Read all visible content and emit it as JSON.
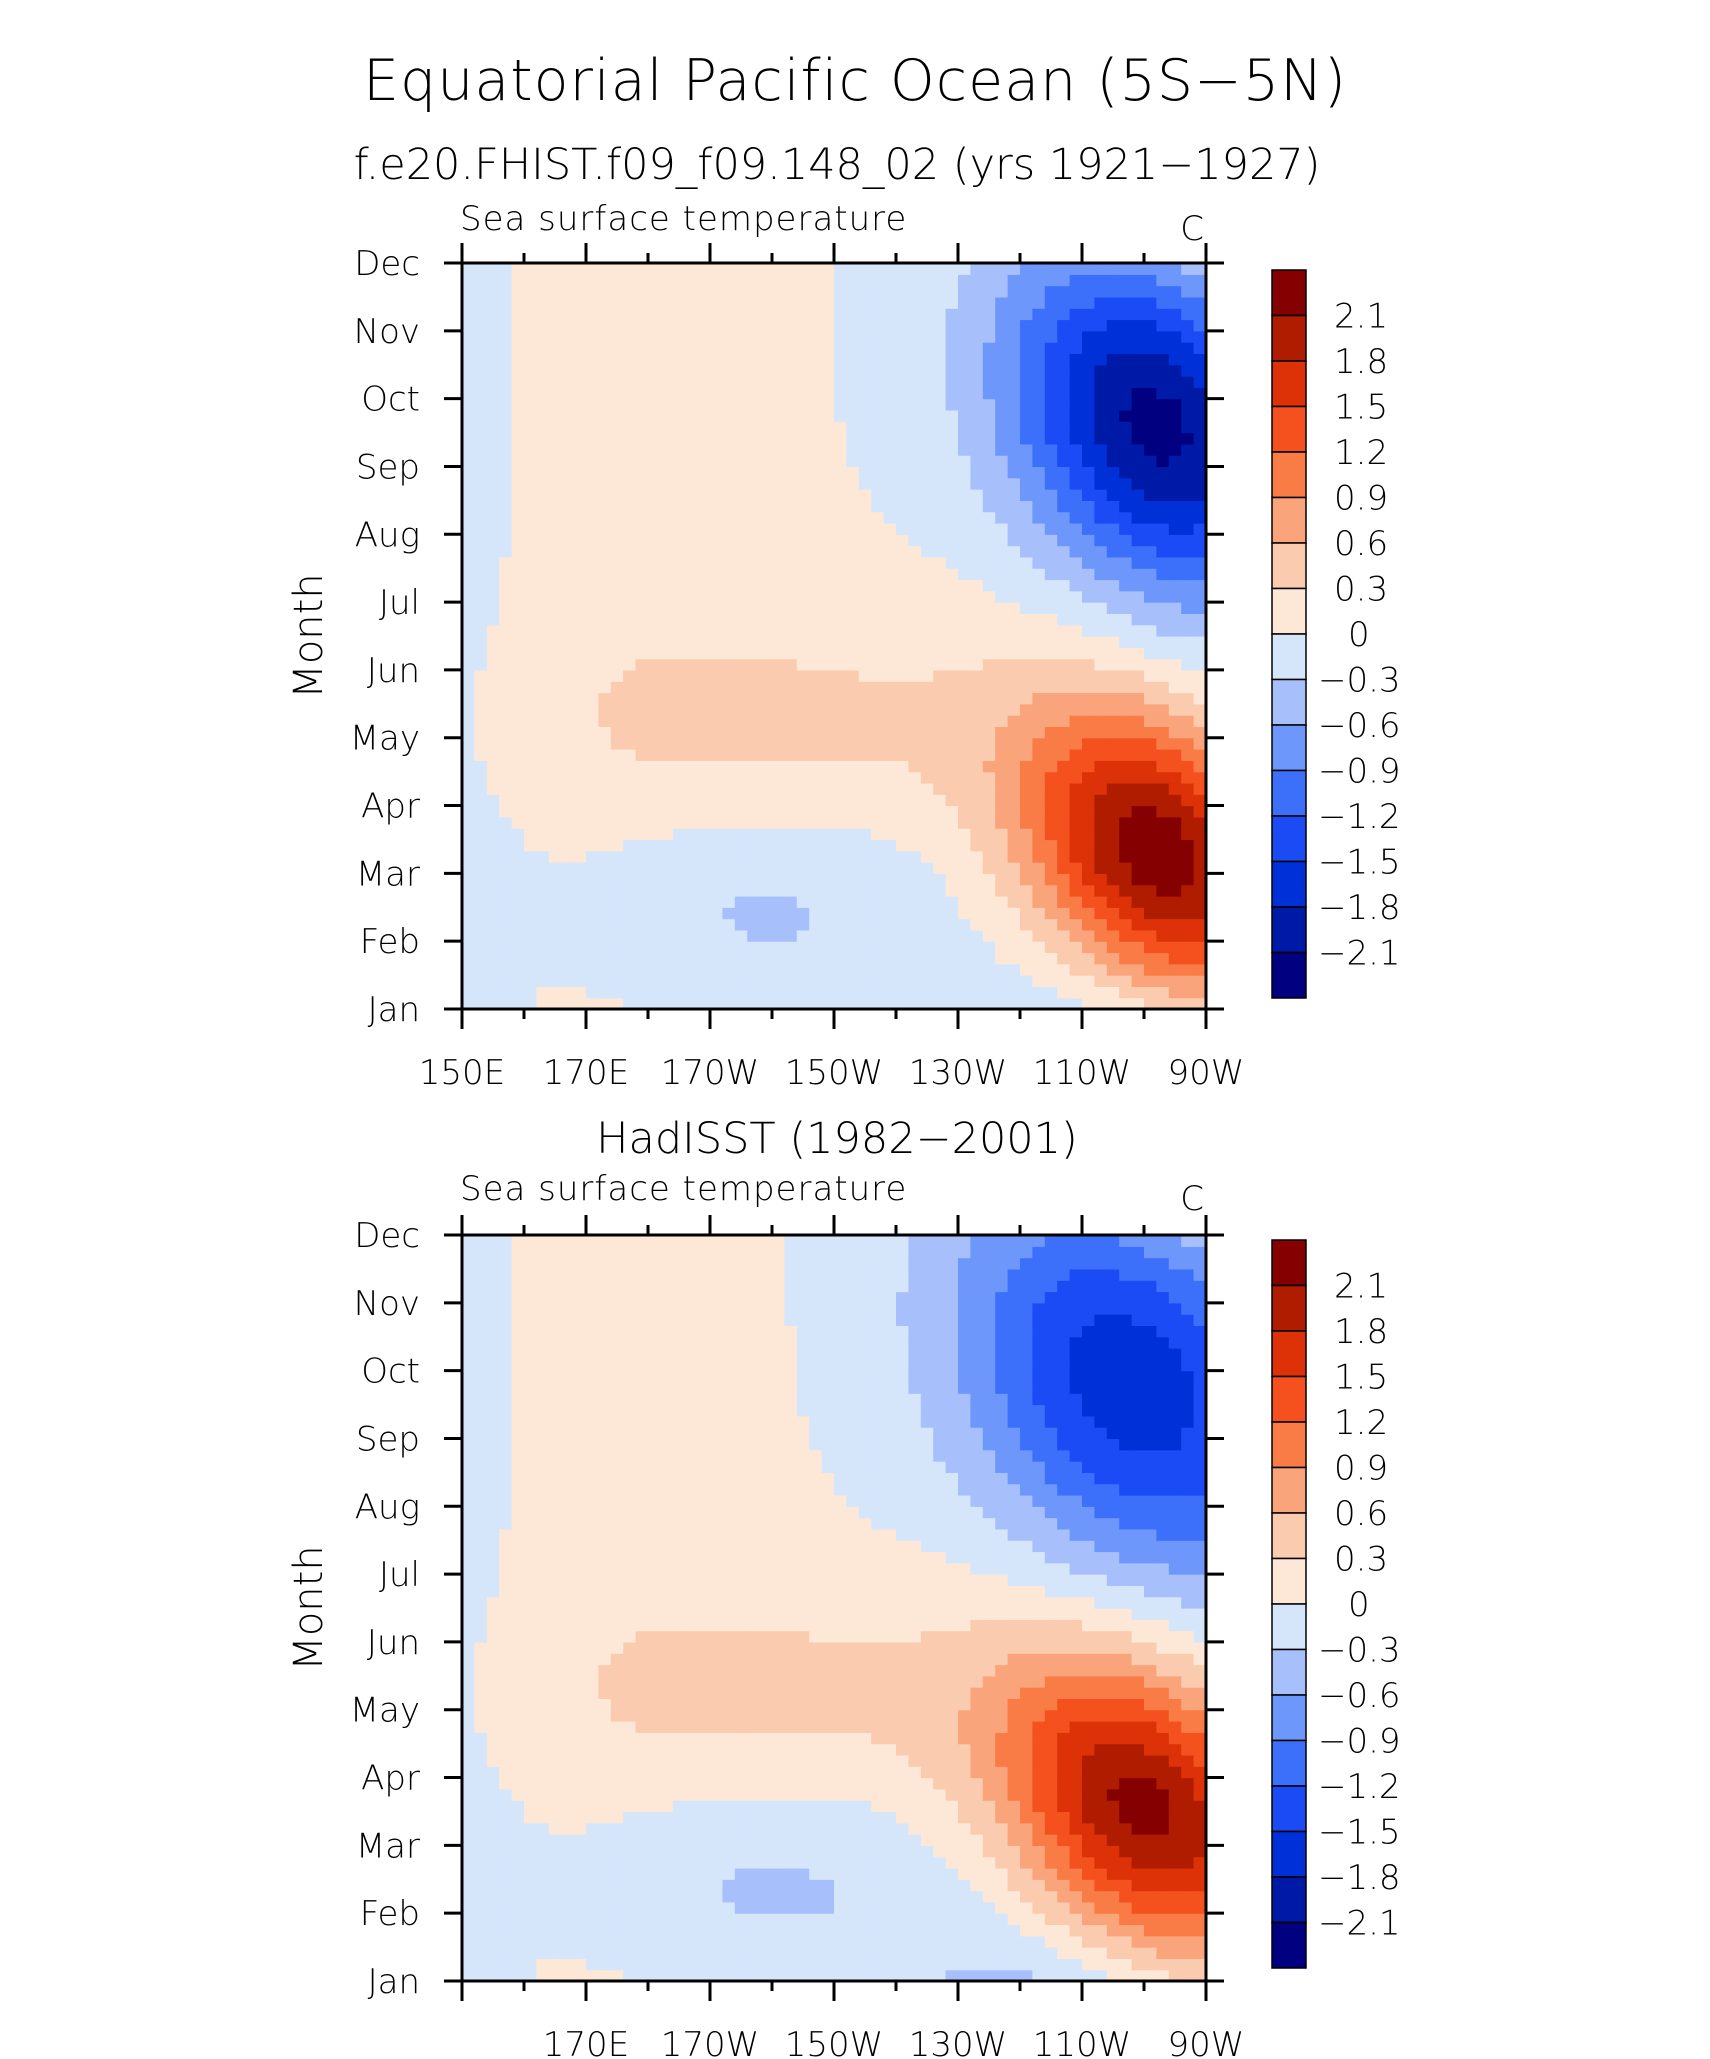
{
  "figure": {
    "title": "Equatorial Pacific Ocean (5S−5N)"
  },
  "chart_data": [
    {
      "type": "heatmap",
      "title": "f.e20.FHIST.f09_f09.148_02 (yrs 1921−1927)",
      "subtitle": "Sea surface temperature",
      "units": "C",
      "ylabel": "Month",
      "y_categories": [
        "Jan",
        "Feb",
        "Mar",
        "Apr",
        "May",
        "Jun",
        "Jul",
        "Aug",
        "Sep",
        "Oct",
        "Nov",
        "Dec"
      ],
      "x_tick_labels": [
        "150E",
        "170E",
        "170W",
        "150W",
        "130W",
        "110W",
        "90W"
      ],
      "x_tick_lons": [
        150,
        170,
        190,
        210,
        230,
        250,
        270
      ],
      "xlim": [
        150,
        270
      ],
      "colorbar_labels": [
        "2.1",
        "1.8",
        "1.5",
        "1.2",
        "0.9",
        "0.6",
        "0.3",
        "0",
        "−0.3",
        "−0.6",
        "−0.9",
        "−1.2",
        "−1.5",
        "−1.8",
        "−2.1"
      ],
      "levels": [
        -2.1,
        -1.8,
        -1.5,
        -1.2,
        -0.9,
        -0.6,
        -0.3,
        0,
        0.3,
        0.6,
        0.9,
        1.2,
        1.5,
        1.8,
        2.1
      ],
      "field_description": "seasonal SST anomaly vs longitude",
      "features": [
        {
          "lon": 262,
          "month": 2.3,
          "value": 2.3,
          "lon_sigma": 15,
          "month_sigma": 1.4
        },
        {
          "lon": 262,
          "month": 8.6,
          "value": -2.2,
          "lon_sigma": 17,
          "month_sigma": 1.7
        }
      ]
    },
    {
      "type": "heatmap",
      "title": "HadISST (1982−2001)",
      "subtitle": "Sea surface temperature",
      "units": "C",
      "ylabel": "Month",
      "y_categories": [
        "Jan",
        "Feb",
        "Mar",
        "Apr",
        "May",
        "Jun",
        "Jul",
        "Aug",
        "Sep",
        "Oct",
        "Nov",
        "Dec"
      ],
      "x_tick_labels": [
        "170E",
        "170W",
        "150W",
        "130W",
        "110W",
        "90W"
      ],
      "x_tick_lons": [
        170,
        190,
        210,
        230,
        250,
        270
      ],
      "xlim": [
        150,
        270
      ],
      "colorbar_labels": [
        "2.1",
        "1.8",
        "1.5",
        "1.2",
        "0.9",
        "0.6",
        "0.3",
        "0",
        "−0.3",
        "−0.6",
        "−0.9",
        "−1.2",
        "−1.5",
        "−1.8",
        "−2.1"
      ],
      "levels": [
        -2.1,
        -1.8,
        -1.5,
        -1.2,
        -0.9,
        -0.6,
        -0.3,
        0,
        0.3,
        0.6,
        0.9,
        1.2,
        1.5,
        1.8,
        2.1
      ],
      "field_description": "seasonal SST anomaly vs longitude",
      "features": [
        {
          "lon": 260,
          "month": 2.5,
          "value": 2.2,
          "lon_sigma": 16,
          "month_sigma": 1.5
        },
        {
          "lon": 258,
          "month": 8.8,
          "value": -1.7,
          "lon_sigma": 20,
          "month_sigma": 2.0
        }
      ]
    }
  ],
  "colorbar_colors": [
    "#000080",
    "#001aa8",
    "#0030d8",
    "#1a4bf5",
    "#3c70fa",
    "#6e97fb",
    "#a7c0fb",
    "#d5e6fb",
    "#fde8d7",
    "#fbcbb0",
    "#f9a47a",
    "#f97b46",
    "#f4511e",
    "#dd3108",
    "#b01c00",
    "#850000"
  ]
}
